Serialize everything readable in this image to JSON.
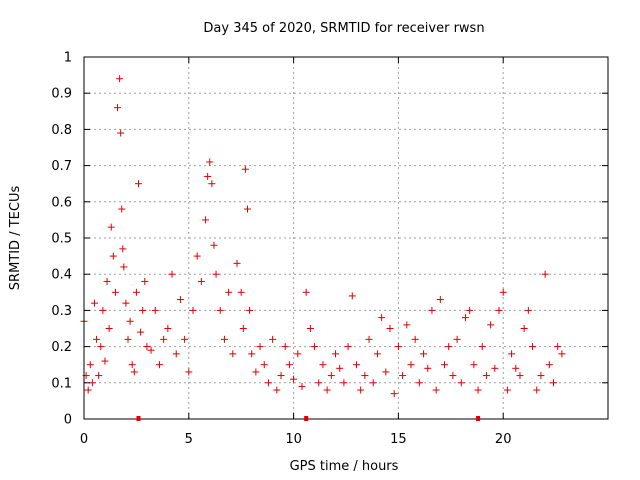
{
  "chart_data": {
    "type": "scatter",
    "title": "Day 345 of 2020, SRMTID for receiver rwsn",
    "xlabel": "GPS time / hours",
    "ylabel": "SRMTID / TECUs",
    "xlim": [
      0,
      25
    ],
    "ylim": [
      0,
      1
    ],
    "x_ticks": [
      0,
      5,
      10,
      15,
      20
    ],
    "x_tick_labels": [
      "0",
      "5",
      "10",
      "15",
      "20"
    ],
    "y_ticks": [
      0,
      0.1,
      0.2,
      0.3,
      0.4,
      0.5,
      0.6,
      0.7,
      0.8,
      0.9,
      1
    ],
    "y_tick_labels": [
      "0",
      "0.1",
      "0.2",
      "0.3",
      "0.4",
      "0.5",
      "0.6",
      "0.7",
      "0.8",
      "0.9",
      "1"
    ],
    "grid": true,
    "marker": "plus",
    "color": "#e00000",
    "series": [
      {
        "name": "SRMTID",
        "x": [
          0.0,
          0.1,
          0.2,
          0.3,
          0.4,
          0.5,
          0.6,
          0.7,
          0.8,
          0.9,
          1.0,
          1.1,
          1.2,
          1.3,
          1.4,
          1.5,
          1.6,
          1.7,
          1.75,
          1.8,
          1.85,
          1.9,
          2.0,
          2.1,
          2.2,
          2.3,
          2.4,
          2.5,
          2.6,
          2.7,
          2.8,
          2.9,
          3.0,
          3.2,
          3.4,
          3.6,
          3.8,
          4.0,
          4.2,
          4.4,
          4.6,
          4.8,
          5.0,
          5.2,
          5.4,
          5.6,
          5.8,
          5.9,
          6.0,
          6.1,
          6.2,
          6.3,
          6.5,
          6.7,
          6.9,
          7.1,
          7.3,
          7.5,
          7.6,
          7.7,
          7.8,
          7.9,
          8.0,
          8.2,
          8.4,
          8.6,
          8.8,
          9.0,
          9.2,
          9.4,
          9.6,
          9.8,
          10.0,
          10.2,
          10.4,
          10.6,
          10.8,
          11.0,
          11.2,
          11.4,
          11.6,
          11.8,
          12.0,
          12.2,
          12.4,
          12.6,
          12.8,
          13.0,
          13.2,
          13.4,
          13.6,
          13.8,
          14.0,
          14.2,
          14.4,
          14.6,
          14.8,
          15.0,
          15.2,
          15.4,
          15.6,
          15.8,
          16.0,
          16.2,
          16.4,
          16.6,
          16.8,
          17.0,
          17.2,
          17.4,
          17.6,
          17.8,
          18.0,
          18.2,
          18.4,
          18.6,
          18.8,
          19.0,
          19.2,
          19.4,
          19.6,
          19.8,
          20.0,
          20.2,
          20.4,
          20.6,
          20.8,
          21.0,
          21.2,
          21.4,
          21.6,
          21.8,
          22.0,
          22.2,
          22.4,
          22.6,
          22.8
        ],
        "y": [
          0.27,
          0.12,
          0.08,
          0.15,
          0.1,
          0.32,
          0.22,
          0.12,
          0.2,
          0.3,
          0.16,
          0.38,
          0.25,
          0.53,
          0.45,
          0.35,
          0.86,
          0.94,
          0.79,
          0.58,
          0.47,
          0.42,
          0.32,
          0.22,
          0.27,
          0.15,
          0.13,
          0.35,
          0.65,
          0.24,
          0.3,
          0.38,
          0.2,
          0.19,
          0.3,
          0.15,
          0.22,
          0.25,
          0.4,
          0.18,
          0.33,
          0.22,
          0.13,
          0.3,
          0.45,
          0.38,
          0.55,
          0.67,
          0.71,
          0.65,
          0.48,
          0.4,
          0.3,
          0.22,
          0.35,
          0.18,
          0.43,
          0.35,
          0.25,
          0.69,
          0.58,
          0.3,
          0.18,
          0.13,
          0.2,
          0.15,
          0.1,
          0.22,
          0.08,
          0.12,
          0.2,
          0.15,
          0.11,
          0.18,
          0.09,
          0.35,
          0.25,
          0.2,
          0.1,
          0.15,
          0.08,
          0.12,
          0.18,
          0.14,
          0.1,
          0.2,
          0.34,
          0.15,
          0.08,
          0.12,
          0.22,
          0.1,
          0.18,
          0.28,
          0.13,
          0.25,
          0.07,
          0.2,
          0.12,
          0.26,
          0.15,
          0.22,
          0.1,
          0.18,
          0.14,
          0.3,
          0.08,
          0.33,
          0.15,
          0.2,
          0.12,
          0.22,
          0.1,
          0.28,
          0.3,
          0.15,
          0.08,
          0.2,
          0.12,
          0.26,
          0.14,
          0.3,
          0.35,
          0.08,
          0.18,
          0.14,
          0.12,
          0.25,
          0.3,
          0.2,
          0.08,
          0.12,
          0.4,
          0.15,
          0.1,
          0.2,
          0.18
        ]
      }
    ],
    "axis_markers_x": [
      2.6,
      10.6,
      18.8
    ]
  }
}
